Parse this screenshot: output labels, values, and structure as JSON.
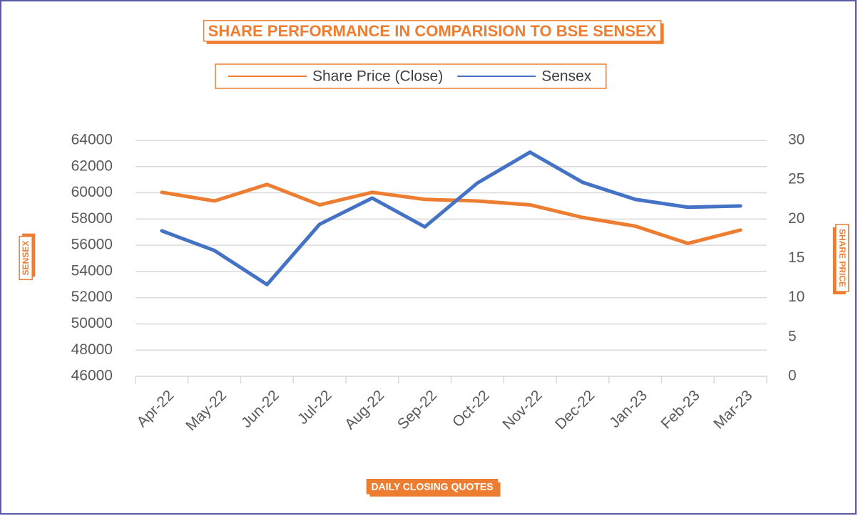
{
  "chart_data": {
    "type": "line",
    "title": "SHARE PERFORMANCE IN COMPARISION TO BSE SENSEX",
    "y_label": "SENSEX",
    "y2_label": "SHARE PRICE",
    "x_label": "DAILY CLOSING QUOTES",
    "categories": [
      "Apr-22",
      "May-22",
      "Jun-22",
      "Jul-22",
      "Aug-22",
      "Sep-22",
      "Oct-22",
      "Nov-22",
      "Dec-22",
      "Jan-23",
      "Feb-23",
      "Mar-23"
    ],
    "series": [
      {
        "name": "Share Price (Close)",
        "color": "#ed7d31",
        "axis": "y2",
        "values": [
          23.4,
          22.3,
          24.4,
          21.8,
          23.4,
          22.5,
          22.3,
          21.8,
          20.2,
          19.1,
          16.9,
          18.6
        ]
      },
      {
        "name": "Sensex",
        "color": "#4472c4",
        "axis": "y",
        "values": [
          57100,
          55600,
          53000,
          57600,
          59600,
          57400,
          60750,
          63100,
          60800,
          59500,
          58900,
          59000
        ]
      }
    ],
    "ylim": [
      46000,
      64000
    ],
    "yticks": [
      46000,
      48000,
      50000,
      52000,
      54000,
      56000,
      58000,
      60000,
      62000,
      64000
    ],
    "y2lim": [
      0,
      30
    ],
    "y2ticks": [
      0,
      5,
      10,
      15,
      20,
      25,
      30
    ],
    "grid": true,
    "legend": "top"
  }
}
